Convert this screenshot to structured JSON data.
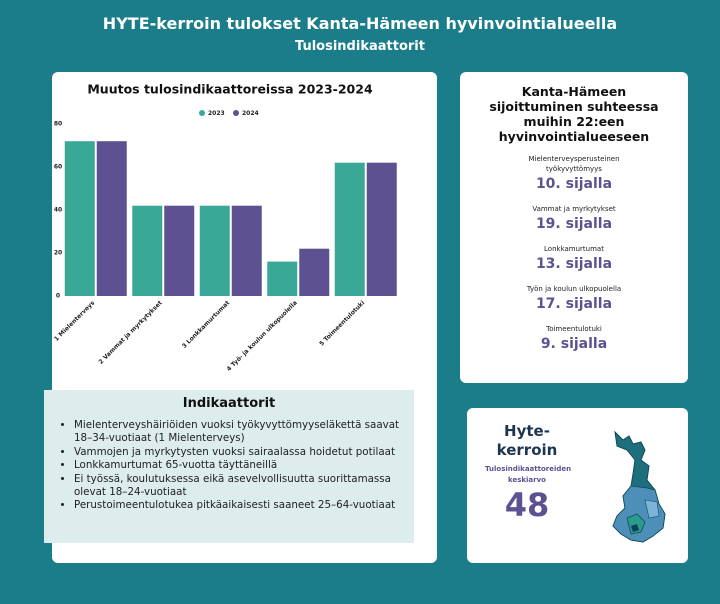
{
  "header": {
    "title": "HYTE-kerroin tulokset Kanta-Hämeen hyvinvointialueella",
    "subtitle": "Tulosindikaattorit"
  },
  "chart_data": {
    "type": "bar",
    "title": "Muutos tulosindikaattoreissa 2023-2024",
    "categories": [
      "1 Mielenterveys",
      "2 Vammat ja myrkytykset",
      "3 Lonkkamurtumat",
      "4 Työ- ja koulun ulkopuolella",
      "5 Toimeentulotuki"
    ],
    "series": [
      {
        "name": "2023",
        "color": "#3aa896",
        "values": [
          72,
          42,
          42,
          16,
          62
        ]
      },
      {
        "name": "2024",
        "color": "#5e5191",
        "values": [
          72,
          42,
          42,
          22,
          62
        ]
      }
    ],
    "ylim": [
      0,
      80
    ],
    "yticks": [
      0,
      20,
      40,
      60,
      80
    ],
    "grid": false,
    "legend": "top"
  },
  "indicators": {
    "title": "Indikaattorit",
    "items": [
      "Mielenterveyshäiriöiden vuoksi työkyvyttömyyseläkettä saavat 18–34-vuotiaat (1 Mielenterveys)",
      "Vammojen ja myrkytysten vuoksi sairaalassa hoidetut potilaat",
      "Lonkkamurtumat 65-vuotta täyttäneillä",
      "Ei työssä, koulutuksessa eikä asevelvollisuutta suorittamassa olevat 18–24-vuotiaat",
      "Perustoimeentulotukea pitkäaikaisesti saaneet 25–64-vuotiaat"
    ]
  },
  "ranking": {
    "title": "Kanta-Hämeen sijoittuminen suhteessa muihin 22:een hyvinvointialueeseen",
    "items": [
      {
        "label": "Mielenterveysperusteinen työkyvyttömyys",
        "value": "10. sijalla"
      },
      {
        "label": "Vammat ja myrkytykset",
        "value": "19. sijalla"
      },
      {
        "label": "Lonkkamurtumat",
        "value": "13. sijalla"
      },
      {
        "label": "Työn ja koulun ulkopuolella",
        "value": "17. sijalla"
      },
      {
        "label": "Toimeentulotuki",
        "value": "9. sijalla"
      }
    ]
  },
  "index": {
    "title": "Hyte-kerroin",
    "subtitle": "Tulosindikaattoreiden keskiarvo",
    "value": 48
  }
}
